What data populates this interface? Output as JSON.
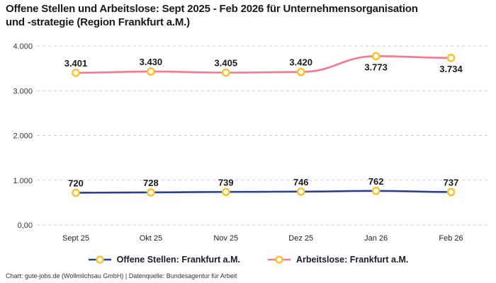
{
  "title": {
    "line1": "Offene Stellen und Arbeitslose: Sept 2025 - Feb 2026 für Unternehmensorganisation",
    "line2": "und -strategie (Region Frankfurt a.M.)"
  },
  "chart_data": {
    "type": "line",
    "categories": [
      "Sept 25",
      "Okt 25",
      "Nov 25",
      "Dez 25",
      "Jan 26",
      "Feb 26"
    ],
    "series": [
      {
        "name": "Offene Stellen: Frankfurt a.M.",
        "color": "#2A3F96",
        "values": [
          720,
          728,
          739,
          746,
          762,
          737
        ],
        "value_labels": [
          "720",
          "728",
          "739",
          "746",
          "762",
          "737"
        ],
        "label_positions": [
          "above",
          "above",
          "above",
          "above",
          "above",
          "above"
        ]
      },
      {
        "name": "Arbeitslose: Frankfurt a.M.",
        "color": "#F7788F",
        "values": [
          3401,
          3430,
          3405,
          3420,
          3773,
          3734
        ],
        "value_labels": [
          "3.401",
          "3.430",
          "3.405",
          "3.420",
          "3.773",
          "3.734"
        ],
        "label_positions": [
          "above",
          "above",
          "above",
          "above",
          "below",
          "below"
        ]
      }
    ],
    "marker": {
      "fill": "#ffffff",
      "stroke": "#FBC12B"
    },
    "ylim": [
      0,
      4000
    ],
    "yticks": [
      {
        "value": 0,
        "label": "0,00"
      },
      {
        "value": 1000,
        "label": "1.000"
      },
      {
        "value": 2000,
        "label": "2.000"
      },
      {
        "value": 3000,
        "label": "3.000"
      },
      {
        "value": 4000,
        "label": "4.000"
      }
    ],
    "grid": "dashed",
    "grid_color": "#cccccc",
    "axis_label_color": "#333333",
    "data_label_color": "#1a1a1a",
    "legend_position": "bottom"
  },
  "legend": {
    "items": [
      {
        "label": "Offene Stellen: Frankfurt a.M."
      },
      {
        "label": "Arbeitslose: Frankfurt a.M."
      }
    ]
  },
  "footer": "Chart: gute-jobs.de (Wollmilchsau GmbH) | Datenquelle: Bundesagentur für Arbeit"
}
